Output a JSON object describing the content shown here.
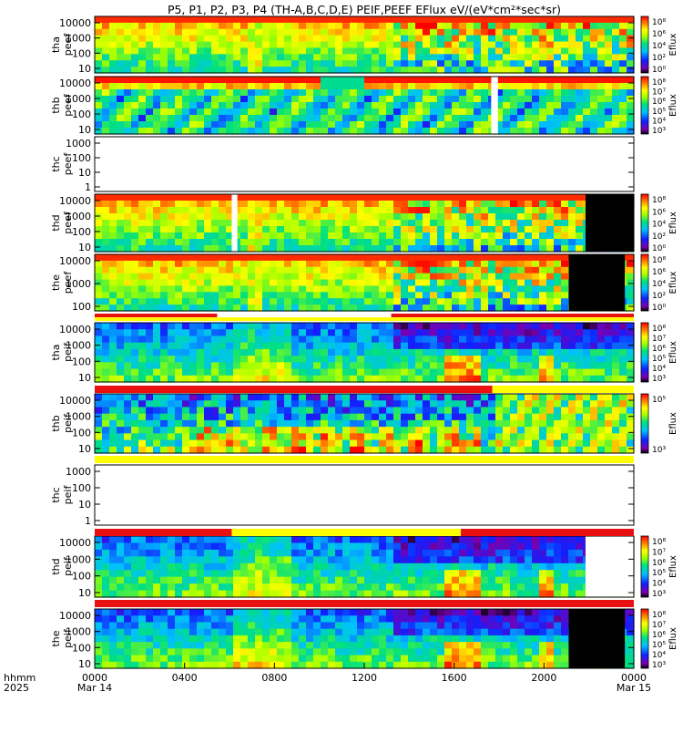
{
  "title": "P5, P1, P2, P3, P4 (TH-A,B,C,D,E) PEIF,PEEF EFlux eV/(eV*cm²*sec*sr)",
  "colors": {
    "red": "#e81010",
    "yellow": "#ffff00",
    "black": "#000000",
    "white": "#ffffff"
  },
  "chart_data": {
    "type": "heatmap",
    "xaxis": {
      "range_hours": [
        0,
        24
      ],
      "ticks": [
        {
          "hour": 0,
          "label": "0000",
          "sub": "Mar 14"
        },
        {
          "hour": 4,
          "label": "0400",
          "sub": ""
        },
        {
          "hour": 8,
          "label": "0800",
          "sub": ""
        },
        {
          "hour": 12,
          "label": "1200",
          "sub": ""
        },
        {
          "hour": 16,
          "label": "1600",
          "sub": ""
        },
        {
          "hour": 20,
          "label": "2000",
          "sub": ""
        },
        {
          "hour": 24,
          "label": "0000",
          "sub": "Mar 15"
        }
      ],
      "label_line1": "hhmm",
      "label_line2": "2025"
    },
    "panels": [
      {
        "id": "tha-peef",
        "ylabel": [
          "tha",
          "peef"
        ],
        "yticks": [
          "10000",
          "1000",
          "100",
          "10"
        ],
        "colorbar": {
          "label": "Eflux",
          "ticks": [
            "10⁸",
            "10⁶",
            "10⁴",
            "10²",
            "10⁰"
          ]
        },
        "style": "electron",
        "data_gaps": [],
        "black_regions": [],
        "has_data": true
      },
      {
        "id": "thb-peef",
        "ylabel": [
          "thb",
          "peef"
        ],
        "yticks": [
          "10000",
          "1000",
          "100",
          "10"
        ],
        "colorbar": {
          "label": "Eflux",
          "ticks": [
            "10⁸",
            "10⁷",
            "10⁶",
            "10⁵",
            "10⁴",
            "10³"
          ]
        },
        "style": "thb-electron",
        "data_gaps": [
          [
            17.65,
            17.95
          ]
        ],
        "black_regions": [],
        "has_data": true
      },
      {
        "id": "thc-peef",
        "ylabel": [
          "thc",
          "peef"
        ],
        "yticks": [
          "1000",
          "100",
          "10",
          "1"
        ],
        "colorbar": null,
        "style": "empty",
        "data_gaps": [],
        "black_regions": [],
        "has_data": false
      },
      {
        "id": "thd-peef",
        "ylabel": [
          "thd",
          "peef"
        ],
        "yticks": [
          "10000",
          "1000",
          "100",
          "10"
        ],
        "colorbar": {
          "label": "Eflux",
          "ticks": [
            "10⁸",
            "10⁶",
            "10⁴",
            "10²",
            "10⁰"
          ]
        },
        "style": "electron",
        "data_gaps": [
          [
            6.1,
            6.35
          ]
        ],
        "black_regions": [
          [
            21.85,
            24
          ]
        ],
        "has_data": true
      },
      {
        "id": "the-peef",
        "ylabel": [
          "the",
          "peef"
        ],
        "yticks": [
          "10000",
          "1000",
          "100"
        ],
        "colorbar": {
          "label": "Eflux",
          "ticks": [
            "10⁸",
            "10⁶",
            "10⁴",
            "10²",
            "10⁰"
          ]
        },
        "style": "electron",
        "data_gaps": [],
        "black_regions": [
          [
            21.1,
            23.6
          ]
        ],
        "has_data": true
      },
      {
        "id": "tha-peif",
        "ylabel": [
          "tha",
          "peif"
        ],
        "yticks": [
          "10000",
          "1000",
          "100",
          "10"
        ],
        "colorbar": {
          "label": "Eflux",
          "ticks": [
            "10⁸",
            "10⁷",
            "10⁶",
            "10⁵",
            "10⁴",
            "10³"
          ]
        },
        "style": "ion",
        "data_gaps": [],
        "black_regions": [],
        "has_data": true
      },
      {
        "id": "thb-peif",
        "ylabel": [
          "thb",
          "peif"
        ],
        "yticks": [
          "10000",
          "1000",
          "100",
          "10"
        ],
        "colorbar": {
          "label": "Eflux",
          "ticks": [
            "10⁵",
            "10³"
          ]
        },
        "style": "thb-ion",
        "data_gaps": [],
        "black_regions": [],
        "has_data": true
      },
      {
        "id": "thc-peif",
        "ylabel": [
          "thc",
          "peif"
        ],
        "yticks": [
          "1000",
          "100",
          "10",
          "1"
        ],
        "colorbar": null,
        "style": "empty",
        "data_gaps": [],
        "black_regions": [],
        "has_data": false
      },
      {
        "id": "thd-peif",
        "ylabel": [
          "thd",
          "peif"
        ],
        "yticks": [
          "10000",
          "1000",
          "100",
          "10"
        ],
        "colorbar": {
          "label": "Eflux",
          "ticks": [
            "10⁸",
            "10⁷",
            "10⁶",
            "10⁵",
            "10⁴",
            "10³"
          ]
        },
        "style": "ion",
        "data_gaps": [
          [
            21.85,
            24
          ]
        ],
        "black_regions": [],
        "has_data": true
      },
      {
        "id": "the-peif",
        "ylabel": [
          "the",
          "peif"
        ],
        "yticks": [
          "10000",
          "1000",
          "100",
          "10"
        ],
        "colorbar": {
          "label": "Eflux",
          "ticks": [
            "10⁸",
            "10⁷",
            "10⁶",
            "10⁵",
            "10⁴",
            "10³"
          ]
        },
        "style": "ion",
        "data_gaps": [],
        "black_regions": [
          [
            21.1,
            23.6
          ]
        ],
        "has_data": true
      }
    ],
    "mode_bars": [
      {
        "after_panel": "the-peef",
        "segments": [
          {
            "from": 0,
            "to": 5.45,
            "row": "top",
            "color": "red"
          },
          {
            "from": 13.2,
            "to": 24,
            "row": "top",
            "color": "red"
          },
          {
            "from": 0,
            "to": 24,
            "row": "bottom",
            "color": "yellow"
          }
        ]
      },
      {
        "after_panel": "tha-peif",
        "segments": [
          {
            "from": 0,
            "to": 17.7,
            "row": "full",
            "color": "red"
          },
          {
            "from": 17.7,
            "to": 24,
            "row": "full",
            "color": "yellow"
          }
        ]
      },
      {
        "after_panel": "thb-peif",
        "segments": [
          {
            "from": 0,
            "to": 24,
            "row": "full",
            "color": "yellow"
          }
        ]
      },
      {
        "after_panel": "thc-peif",
        "segments": [
          {
            "from": 0,
            "to": 6.1,
            "row": "full",
            "color": "red"
          },
          {
            "from": 6.1,
            "to": 16.3,
            "row": "full",
            "color": "yellow"
          },
          {
            "from": 16.3,
            "to": 24,
            "row": "full",
            "color": "red"
          }
        ]
      },
      {
        "after_panel": "thd-peif",
        "segments": [
          {
            "from": 0,
            "to": 24,
            "row": "top",
            "color": "red"
          },
          {
            "from": 0,
            "to": 24,
            "row": "bottom",
            "color": "red"
          }
        ]
      }
    ]
  }
}
